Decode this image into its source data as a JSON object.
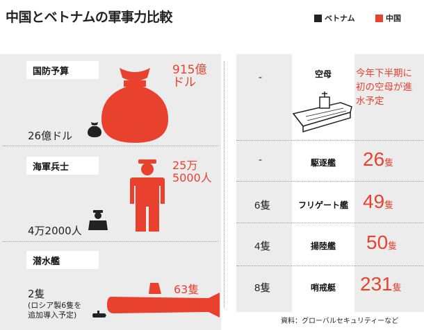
{
  "title": "中国とベトナムの軍事力比較",
  "legend": [
    {
      "label": "ベトナム",
      "color": "#222222"
    },
    {
      "label": "中国",
      "color": "#e8422f"
    }
  ],
  "colors": {
    "vietnam": "#222222",
    "china": "#e8422f",
    "panel": "#ececec"
  },
  "left": [
    {
      "category": "国防予算",
      "icon": "money-bag-icon",
      "vietnam": "26億ドル",
      "china_line1": "915億",
      "china_line2": "ドル"
    },
    {
      "category": "海軍兵士",
      "icon": "sailor-icon",
      "vietnam": "4万2000人",
      "china_line1": "25万",
      "china_line2": "5000人"
    },
    {
      "category": "潜水艦",
      "icon": "submarine-icon",
      "vietnam_line1": "2隻",
      "vietnam_note1": "(ロシア製6隻を",
      "vietnam_note2": "追加導入予定)",
      "china": "63隻"
    }
  ],
  "right": [
    {
      "category": "空母",
      "vietnam": "-",
      "china": "今年下半期に初の空母が進水予定",
      "china_lines": [
        "今年下半期に",
        "初の空母が進",
        "水予定"
      ],
      "icon": "aircraft-carrier-icon"
    },
    {
      "category": "駆逐艦",
      "vietnam": "-",
      "china_num": "26",
      "china_unit": "隻"
    },
    {
      "category": "フリゲート艦",
      "vietnam": "6隻",
      "china_num": "49",
      "china_unit": "隻"
    },
    {
      "category": "揚陸艦",
      "vietnam": "4隻",
      "china_num": "50",
      "china_unit": "隻"
    },
    {
      "category": "哨戒艇",
      "vietnam": "8隻",
      "china_num": "231",
      "china_unit": "隻"
    }
  ],
  "source": "資料：グローバルセキュリティーなど",
  "chart_data": {
    "type": "table",
    "title": "中国とベトナムの軍事力比較",
    "series": [
      {
        "name": "ベトナム",
        "values": [
          "26億ドル",
          "4万2000人",
          "2隻",
          "-",
          "-",
          "6隻",
          "4隻",
          "8隻"
        ]
      },
      {
        "name": "中国",
        "values": [
          "915億ドル",
          "25万5000人",
          "63隻",
          "今年下半期に初の空母が進水予定",
          "26隻",
          "49隻",
          "50隻",
          "231隻"
        ]
      }
    ],
    "categories": [
      "国防予算",
      "海軍兵士",
      "潜水艦",
      "空母",
      "駆逐艦",
      "フリゲート艦",
      "揚陸艦",
      "哨戒艇"
    ]
  }
}
